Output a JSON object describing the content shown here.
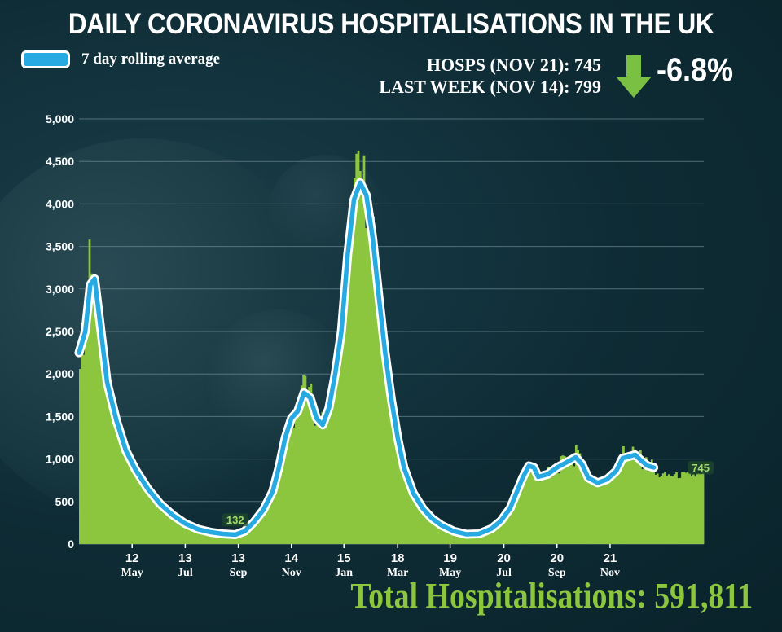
{
  "title": "DAILY CORONAVIRUS HOSPITALISATIONS IN THE UK",
  "legend": {
    "label": "7 day rolling average",
    "color": "#27a9e1"
  },
  "stats": {
    "current": "HOSPS (NOV 21): 745",
    "previous": "LAST WEEK (NOV 14): 799",
    "change": "-6.8%",
    "arrow_color": "#7ac143"
  },
  "total": "Total Hospitalisations: 591,811",
  "colors": {
    "bars": "#8cc63f",
    "line": "#27a9e1",
    "line_outline": "#ffffff",
    "text": "#ffffff",
    "total": "#8cc63f",
    "grid": "#6f8a92"
  },
  "chart_data": {
    "type": "bar",
    "title": "DAILY CORONAVIRUS HOSPITALISATIONS IN THE UK",
    "ylim": [
      0,
      5000
    ],
    "yticks": [
      0,
      500,
      1000,
      1500,
      2000,
      2500,
      3000,
      3500,
      4000,
      4500,
      5000
    ],
    "ytick_labels": [
      "0",
      "500",
      "1,000",
      "1,500",
      "2,000",
      "2,500",
      "3,000",
      "3,500",
      "4,000",
      "4,500",
      "5,000"
    ],
    "grid": "horizontal",
    "xticks": [
      {
        "day": "12",
        "month": "May",
        "t": 0.085
      },
      {
        "day": "13",
        "month": "Jul",
        "t": 0.17
      },
      {
        "day": "13",
        "month": "Sep",
        "t": 0.255
      },
      {
        "day": "14",
        "month": "Nov",
        "t": 0.34
      },
      {
        "day": "15",
        "month": "Jan",
        "t": 0.424
      },
      {
        "day": "18",
        "month": "Mar",
        "t": 0.51
      },
      {
        "day": "19",
        "month": "May",
        "t": 0.594
      },
      {
        "day": "20",
        "month": "Jul",
        "t": 0.68
      },
      {
        "day": "20",
        "month": "Sep",
        "t": 0.765
      },
      {
        "day": "21",
        "month": "Nov",
        "t": 0.85
      }
    ],
    "annotations": [
      {
        "text": "132",
        "t": 0.25,
        "y": 132
      },
      {
        "text": "745",
        "t": 0.995,
        "y": 745
      }
    ],
    "series": [
      {
        "name": "7 day rolling average",
        "points": [
          [
            0.0,
            2250
          ],
          [
            0.01,
            2500
          ],
          [
            0.018,
            3050
          ],
          [
            0.025,
            3120
          ],
          [
            0.032,
            2700
          ],
          [
            0.045,
            1900
          ],
          [
            0.06,
            1450
          ],
          [
            0.075,
            1100
          ],
          [
            0.09,
            880
          ],
          [
            0.11,
            650
          ],
          [
            0.13,
            470
          ],
          [
            0.15,
            340
          ],
          [
            0.17,
            240
          ],
          [
            0.19,
            175
          ],
          [
            0.21,
            140
          ],
          [
            0.23,
            120
          ],
          [
            0.25,
            110
          ],
          [
            0.265,
            150
          ],
          [
            0.28,
            260
          ],
          [
            0.295,
            400
          ],
          [
            0.31,
            620
          ],
          [
            0.32,
            900
          ],
          [
            0.33,
            1250
          ],
          [
            0.34,
            1480
          ],
          [
            0.35,
            1560
          ],
          [
            0.36,
            1780
          ],
          [
            0.37,
            1720
          ],
          [
            0.38,
            1480
          ],
          [
            0.39,
            1400
          ],
          [
            0.4,
            1600
          ],
          [
            0.41,
            2000
          ],
          [
            0.42,
            2500
          ],
          [
            0.43,
            3400
          ],
          [
            0.44,
            4050
          ],
          [
            0.45,
            4250
          ],
          [
            0.46,
            4100
          ],
          [
            0.47,
            3600
          ],
          [
            0.48,
            2900
          ],
          [
            0.49,
            2250
          ],
          [
            0.5,
            1700
          ],
          [
            0.51,
            1250
          ],
          [
            0.52,
            900
          ],
          [
            0.535,
            600
          ],
          [
            0.55,
            420
          ],
          [
            0.565,
            300
          ],
          [
            0.58,
            220
          ],
          [
            0.6,
            150
          ],
          [
            0.62,
            115
          ],
          [
            0.64,
            120
          ],
          [
            0.66,
            180
          ],
          [
            0.675,
            270
          ],
          [
            0.69,
            420
          ],
          [
            0.7,
            600
          ],
          [
            0.71,
            780
          ],
          [
            0.72,
            920
          ],
          [
            0.728,
            900
          ],
          [
            0.735,
            790
          ],
          [
            0.75,
            820
          ],
          [
            0.765,
            900
          ],
          [
            0.78,
            960
          ],
          [
            0.795,
            1020
          ],
          [
            0.805,
            940
          ],
          [
            0.815,
            780
          ],
          [
            0.83,
            720
          ],
          [
            0.845,
            760
          ],
          [
            0.86,
            860
          ],
          [
            0.87,
            1010
          ],
          [
            0.88,
            1030
          ],
          [
            0.89,
            1050
          ],
          [
            0.9,
            980
          ],
          [
            0.91,
            920
          ],
          [
            0.92,
            900
          ]
        ]
      }
    ],
    "bar_peaks": [
      {
        "t": 0.018,
        "y": 3580
      },
      {
        "t": 0.36,
        "y": 1990
      },
      {
        "t": 0.445,
        "y": 4590
      },
      {
        "t": 0.795,
        "y": 1160
      },
      {
        "t": 0.87,
        "y": 1150
      }
    ]
  }
}
